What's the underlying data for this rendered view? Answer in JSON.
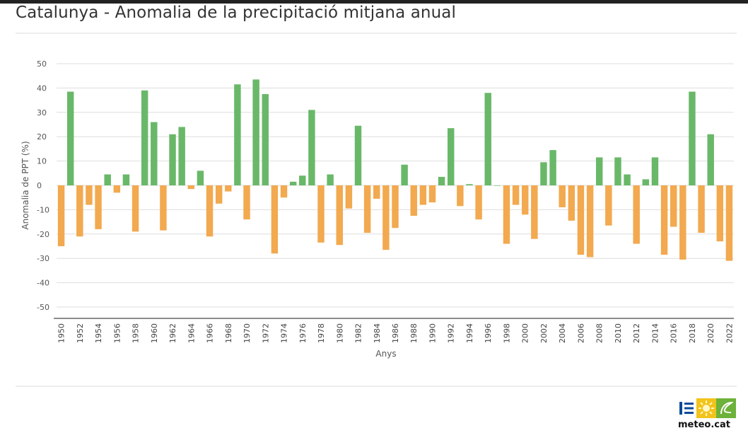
{
  "title": "Catalunya - Anomalia de la precipitació mitjana anual",
  "logo": {
    "text": "meteo.cat"
  },
  "colors": {
    "positive": "#69b869",
    "negative": "#f2a94f",
    "grid": "#dddddd",
    "axis": "#8c8c8c"
  },
  "chart_data": {
    "type": "bar",
    "title": "Catalunya - Anomalia de la precipitació mitjana anual",
    "xlabel": "Anys",
    "ylabel": "Anomalia de PPT (%)",
    "ylim": [
      -50,
      50
    ],
    "yticks": [
      50,
      40,
      30,
      20,
      10,
      0,
      -10,
      -20,
      -30,
      -40,
      -50
    ],
    "grid": true,
    "legend": "none",
    "xticks": [
      "1950",
      "1952",
      "1954",
      "1956",
      "1958",
      "1960",
      "1962",
      "1964",
      "1966",
      "1968",
      "1970",
      "1972",
      "1974",
      "1976",
      "1978",
      "1980",
      "1982",
      "1984",
      "1986",
      "1988",
      "1990",
      "1992",
      "1994",
      "1996",
      "1998",
      "2000",
      "2002",
      "2004",
      "2006",
      "2008",
      "2010",
      "2012",
      "2014",
      "2016",
      "2018",
      "2020",
      "2022"
    ],
    "categories": [
      "1950",
      "1951",
      "1952",
      "1953",
      "1954",
      "1955",
      "1956",
      "1957",
      "1958",
      "1959",
      "1960",
      "1961",
      "1962",
      "1963",
      "1964",
      "1965",
      "1966",
      "1967",
      "1968",
      "1969",
      "1970",
      "1971",
      "1972",
      "1973",
      "1974",
      "1975",
      "1976",
      "1977",
      "1978",
      "1979",
      "1980",
      "1981",
      "1982",
      "1983",
      "1984",
      "1985",
      "1986",
      "1987",
      "1988",
      "1989",
      "1990",
      "1991",
      "1992",
      "1993",
      "1994",
      "1995",
      "1996",
      "1997",
      "1998",
      "1999",
      "2000",
      "2001",
      "2002",
      "2003",
      "2004",
      "2005",
      "2006",
      "2007",
      "2008",
      "2009",
      "2010",
      "2011",
      "2012",
      "2013",
      "2014",
      "2015",
      "2016",
      "2017",
      "2018",
      "2019",
      "2020",
      "2021",
      "2022"
    ],
    "values": [
      -25,
      38.5,
      -21,
      -8,
      -18,
      4.5,
      -3,
      4.5,
      -19,
      39,
      26,
      -18.5,
      21,
      24,
      -1.5,
      6,
      -21,
      -7.5,
      -2.5,
      41.5,
      -14,
      43.5,
      37.5,
      -28,
      -5,
      1.5,
      4,
      31,
      -23.5,
      4.5,
      -24.5,
      -9.5,
      24.5,
      -19.5,
      -5.5,
      -26.5,
      -17.5,
      8.5,
      -12.5,
      -8,
      -7,
      3.5,
      23.5,
      -8.5,
      0.5,
      -14,
      38,
      0,
      -24,
      -8,
      -12,
      -22,
      9.5,
      14.5,
      -9,
      -14.5,
      -28.5,
      -29.5,
      11.5,
      -16.5,
      11.5,
      4.5,
      -24,
      2.5,
      11.5,
      -28.5,
      -17,
      -30.5,
      38.5,
      -19.5,
      21,
      -23,
      -31
    ]
  }
}
